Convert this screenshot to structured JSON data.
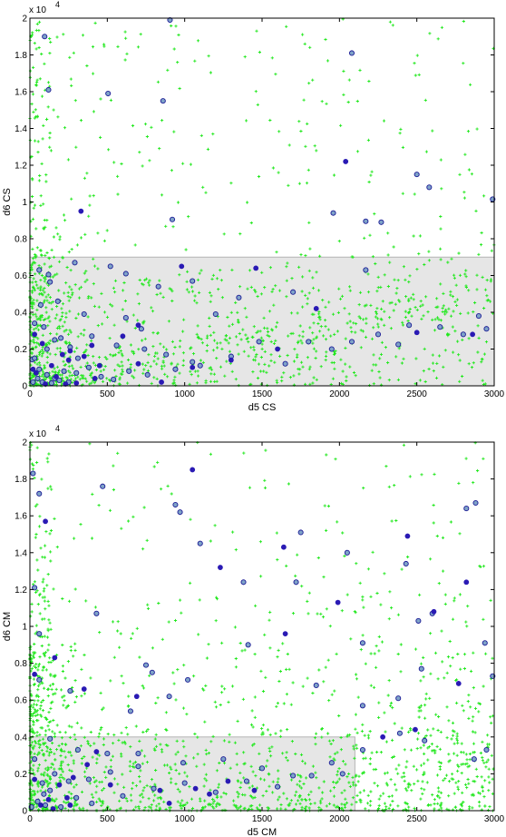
{
  "chart_data": [
    {
      "type": "scatter",
      "xlabel": "d5 CS",
      "ylabel": "d6 CS",
      "xlim": [
        0,
        3000
      ],
      "ylim": [
        0,
        20000
      ],
      "xticks": [
        "0",
        "500",
        "1000",
        "1500",
        "2000",
        "2500",
        "3000"
      ],
      "yticks": [
        "0",
        "0.2",
        "0.4",
        "0.6",
        "0.8",
        "1",
        "1.2",
        "1.4",
        "1.6",
        "1.8",
        "2"
      ],
      "y_multiplier": "x 10",
      "y_exponent": "4",
      "region": {
        "x": [
          0,
          3000
        ],
        "y": [
          0,
          7000
        ]
      },
      "series": [
        {
          "marker": "open-circle",
          "color": "#1c1c96",
          "fill": "#7fa3c8",
          "points": [
            [
              15,
              1430
            ],
            [
              95,
              19000
            ],
            [
              120,
              16100
            ],
            [
              505,
              15900
            ],
            [
              860,
              15500
            ],
            [
              905,
              19900
            ],
            [
              2080,
              18100
            ],
            [
              2500,
              11500
            ],
            [
              2580,
              10800
            ],
            [
              2170,
              8950
            ],
            [
              2270,
              8900
            ],
            [
              2990,
              10150
            ],
            [
              920,
              9050
            ],
            [
              1960,
              9400
            ],
            [
              60,
              6300
            ],
            [
              120,
              6050
            ],
            [
              130,
              5650
            ],
            [
              290,
              6700
            ],
            [
              520,
              6500
            ],
            [
              620,
              6100
            ],
            [
              830,
              5400
            ],
            [
              1050,
              5700
            ],
            [
              1350,
              4800
            ],
            [
              1700,
              5100
            ],
            [
              2170,
              6300
            ],
            [
              2450,
              3300
            ],
            [
              2800,
              2800
            ],
            [
              2950,
              3100
            ],
            [
              180,
              4600
            ],
            [
              350,
              3900
            ],
            [
              620,
              3700
            ],
            [
              720,
              3100
            ],
            [
              1200,
              3900
            ],
            [
              1480,
              2400
            ],
            [
              1800,
              2400
            ],
            [
              2080,
              2400
            ],
            [
              2380,
              2250
            ],
            [
              2650,
              3200
            ],
            [
              2900,
              3800
            ],
            [
              70,
              4400
            ],
            [
              90,
              3200
            ],
            [
              160,
              2500
            ],
            [
              260,
              2100
            ],
            [
              400,
              2700
            ],
            [
              560,
              2200
            ],
            [
              740,
              2000
            ],
            [
              880,
              1700
            ],
            [
              1050,
              1300
            ],
            [
              1300,
              1600
            ],
            [
              1650,
              1200
            ],
            [
              1950,
              2000
            ],
            [
              2250,
              2800
            ],
            [
              30,
              1500
            ],
            [
              60,
              900
            ],
            [
              110,
              600
            ],
            [
              160,
              400
            ],
            [
              220,
              800
            ],
            [
              300,
              700
            ],
            [
              380,
              1000
            ],
            [
              460,
              500
            ],
            [
              540,
              350
            ],
            [
              640,
              800
            ],
            [
              760,
              600
            ],
            [
              940,
              900
            ],
            [
              1100,
              1100
            ],
            [
              30,
              3400
            ],
            [
              110,
              2000
            ],
            [
              200,
              2600
            ],
            [
              310,
              1500
            ],
            [
              20,
              200
            ],
            [
              50,
              400
            ],
            [
              80,
              200
            ],
            [
              140,
              150
            ],
            [
              190,
              300
            ],
            [
              250,
              200
            ]
          ]
        },
        {
          "marker": "filled-circle",
          "color": "#2a1ab4",
          "points": [
            [
              330,
              9500
            ],
            [
              2040,
              12200
            ],
            [
              980,
              6500
            ],
            [
              1460,
              6400
            ],
            [
              1850,
              4200
            ],
            [
              2500,
              2900
            ],
            [
              2860,
              2800
            ],
            [
              700,
              3300
            ],
            [
              600,
              2700
            ],
            [
              400,
              2200
            ],
            [
              250,
              1400
            ],
            [
              140,
              1100
            ],
            [
              210,
              1700
            ],
            [
              260,
              1900
            ],
            [
              350,
              1600
            ],
            [
              450,
              1100
            ],
            [
              700,
              1200
            ],
            [
              1050,
              1000
            ],
            [
              1300,
              1400
            ],
            [
              1600,
              2000
            ],
            [
              850,
              200
            ],
            [
              30,
              2800
            ],
            [
              80,
              2300
            ],
            [
              20,
              900
            ],
            [
              40,
              700
            ],
            [
              100,
              100
            ],
            [
              170,
              500
            ],
            [
              230,
              100
            ],
            [
              300,
              150
            ],
            [
              420,
              400
            ]
          ]
        }
      ]
    },
    {
      "type": "scatter",
      "xlabel": "d5 CM",
      "ylabel": "d6 CM",
      "xlim": [
        0,
        3000
      ],
      "ylim": [
        0,
        20000
      ],
      "xticks": [
        "0",
        "500",
        "1000",
        "1500",
        "2000",
        "2500",
        "3000"
      ],
      "yticks": [
        "0",
        "0.2",
        "0.4",
        "0.6",
        "0.8",
        "1",
        "1.2",
        "1.4",
        "1.6",
        "1.8",
        "2"
      ],
      "y_multiplier": "x 10",
      "y_exponent": "4",
      "region": {
        "x": [
          0,
          2100
        ],
        "y": [
          0,
          4000
        ]
      },
      "series": [
        {
          "marker": "open-circle",
          "color": "#1c1c96",
          "fill": "#7fa3c8",
          "points": [
            [
              20,
              18300
            ],
            [
              60,
              17200
            ],
            [
              470,
              17600
            ],
            [
              940,
              16600
            ],
            [
              970,
              16200
            ],
            [
              1750,
              15100
            ],
            [
              2820,
              16400
            ],
            [
              2880,
              16700
            ],
            [
              1100,
              14500
            ],
            [
              1380,
              12400
            ],
            [
              1720,
              12400
            ],
            [
              2050,
              14000
            ],
            [
              2430,
              13400
            ],
            [
              2600,
              10700
            ],
            [
              2510,
              10300
            ],
            [
              30,
              12100
            ],
            [
              60,
              9600
            ],
            [
              430,
              10700
            ],
            [
              1410,
              9000
            ],
            [
              2150,
              9100
            ],
            [
              60,
              7100
            ],
            [
              750,
              7900
            ],
            [
              790,
              7500
            ],
            [
              1020,
              7100
            ],
            [
              1850,
              6800
            ],
            [
              2530,
              7700
            ],
            [
              2380,
              6100
            ],
            [
              2150,
              5700
            ],
            [
              900,
              6200
            ],
            [
              650,
              5400
            ],
            [
              260,
              6500
            ],
            [
              2940,
              9100
            ],
            [
              2990,
              7300
            ],
            [
              2390,
              4200
            ],
            [
              2550,
              3800
            ],
            [
              2150,
              3300
            ],
            [
              1950,
              2600
            ],
            [
              2870,
              2800
            ],
            [
              2950,
              3300
            ],
            [
              1700,
              1900
            ],
            [
              1500,
              2300
            ],
            [
              1250,
              2800
            ],
            [
              990,
              2600
            ],
            [
              700,
              2400
            ],
            [
              520,
              2100
            ],
            [
              380,
              1700
            ],
            [
              250,
              1600
            ],
            [
              130,
              1100
            ],
            [
              90,
              900
            ],
            [
              160,
              2000
            ],
            [
              310,
              3300
            ],
            [
              500,
              3100
            ],
            [
              2020,
              2000
            ],
            [
              1820,
              1900
            ],
            [
              50,
              500
            ],
            [
              100,
              300
            ],
            [
              200,
              200
            ],
            [
              300,
              700
            ],
            [
              400,
              400
            ],
            [
              600,
              800
            ],
            [
              800,
              1200
            ],
            [
              1000,
              1500
            ],
            [
              1200,
              1000
            ],
            [
              1400,
              1600
            ],
            [
              1600,
              1300
            ],
            [
              10,
              200
            ],
            [
              80,
              1500
            ],
            [
              130,
              3900
            ],
            [
              30,
              2800
            ],
            [
              700,
              3100
            ]
          ]
        },
        {
          "marker": "filled-circle",
          "color": "#2a1ab4",
          "points": [
            [
              100,
              15700
            ],
            [
              1050,
              18500
            ],
            [
              1230,
              13200
            ],
            [
              1640,
              14300
            ],
            [
              1650,
              9600
            ],
            [
              1990,
              11300
            ],
            [
              2440,
              14900
            ],
            [
              2610,
              10800
            ],
            [
              2820,
              12400
            ],
            [
              30,
              7400
            ],
            [
              160,
              8300
            ],
            [
              350,
              6600
            ],
            [
              690,
              6200
            ],
            [
              2770,
              6900
            ],
            [
              2490,
              4400
            ],
            [
              2280,
              4000
            ],
            [
              430,
              3200
            ],
            [
              370,
              2500
            ],
            [
              280,
              1800
            ],
            [
              190,
              1400
            ],
            [
              120,
              600
            ],
            [
              240,
              700
            ],
            [
              520,
              1400
            ],
            [
              840,
              1100
            ],
            [
              1160,
              900
            ],
            [
              1450,
              1100
            ],
            [
              30,
              1700
            ],
            [
              70,
              300
            ],
            [
              150,
              100
            ],
            [
              260,
              300
            ],
            [
              1280,
              1600
            ],
            [
              1070,
              1200
            ],
            [
              900,
              400
            ]
          ]
        }
      ]
    }
  ]
}
